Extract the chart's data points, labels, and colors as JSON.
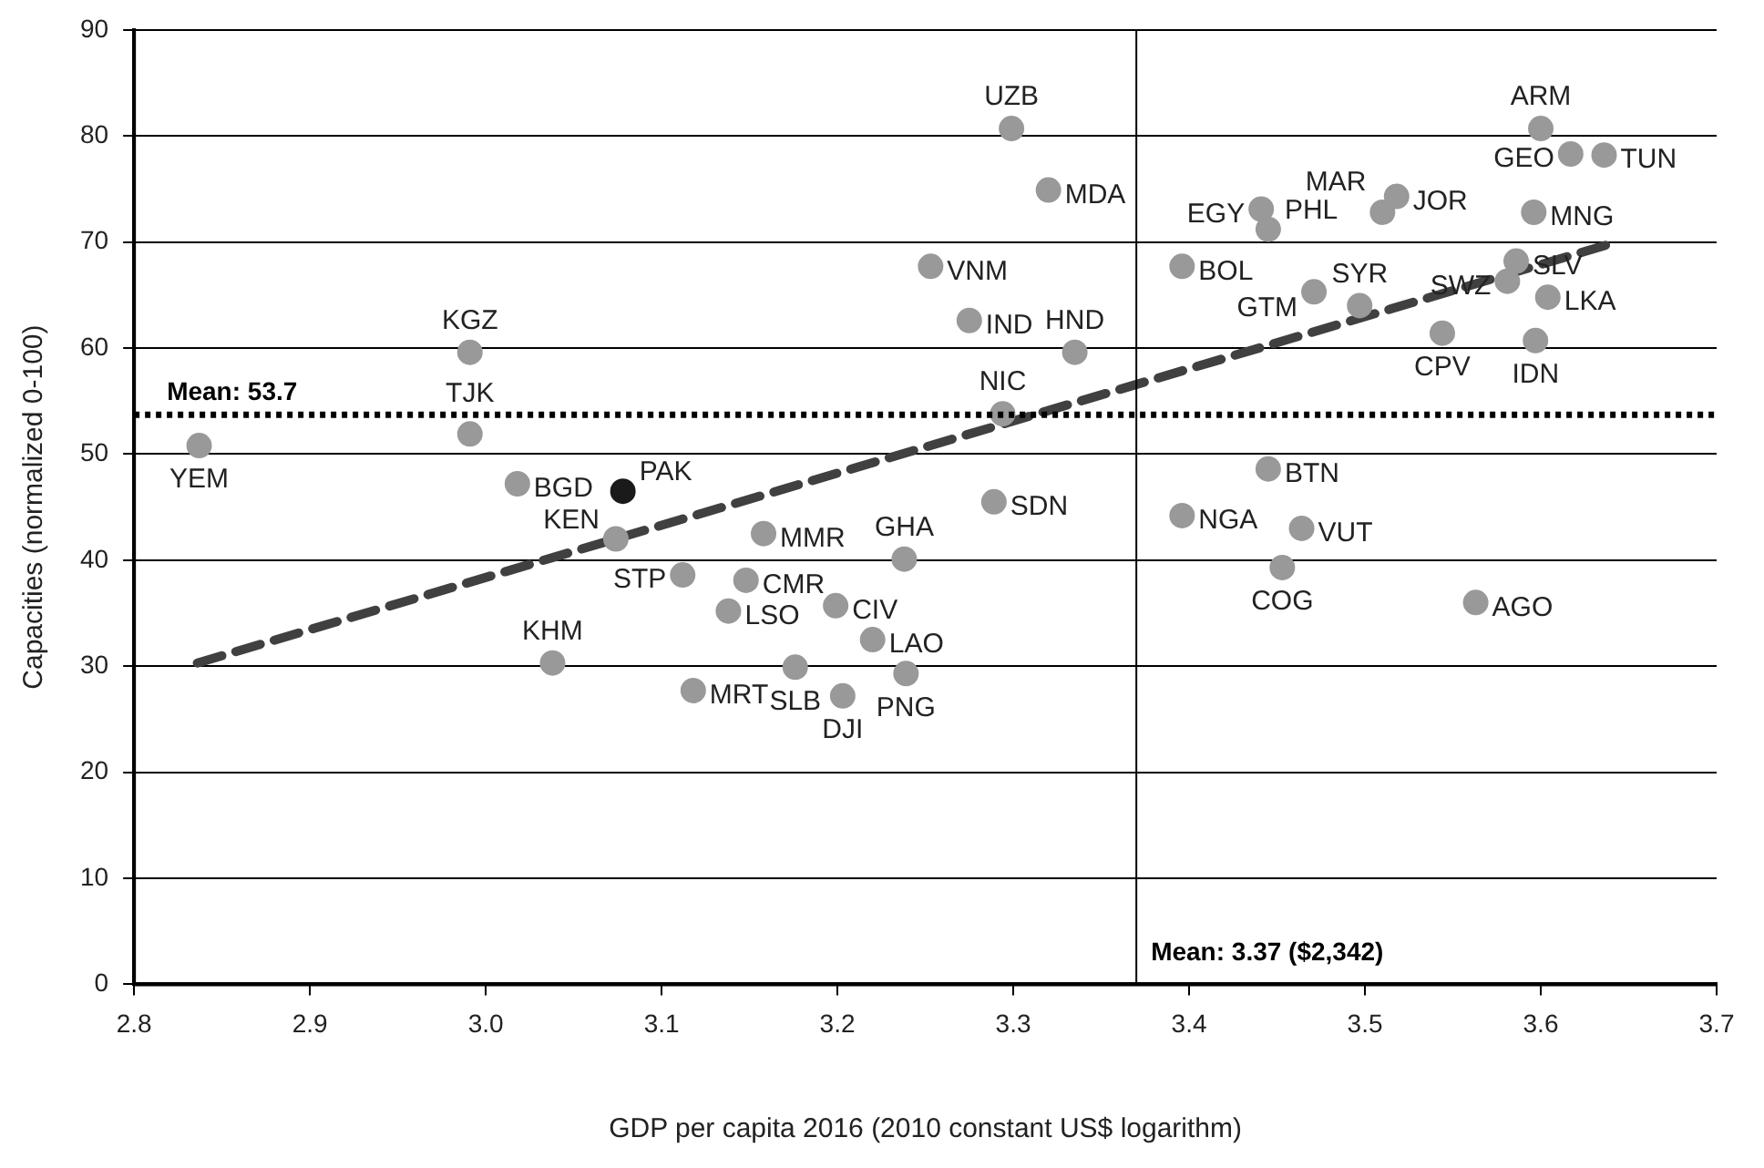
{
  "chart_data": {
    "type": "scatter",
    "xlabel": "GDP per capita 2016 (2010 constant US$ logarithm)",
    "ylabel": "Capacities (normalized 0-100)",
    "xlim": [
      2.8,
      3.7
    ],
    "xticks": [
      2.8,
      2.9,
      {
        "value": 3,
        "label": "3.0"
      },
      3.1,
      3.2,
      3.3,
      3.4,
      3.5,
      3.6,
      3.7
    ],
    "ylim": [
      0,
      90
    ],
    "yticks": [
      0,
      10,
      20,
      30,
      40,
      50,
      60,
      70,
      80,
      90
    ],
    "grid": "y",
    "legend": false,
    "series": [
      {
        "type": "scatter",
        "marker": "circle",
        "x": [
          2.837,
          2.991,
          2.991,
          3.018,
          3.078,
          3.074,
          3.038,
          3.112,
          3.148,
          3.158,
          3.138,
          3.199,
          3.22,
          3.176,
          3.118,
          3.203,
          3.239,
          3.238,
          3.289,
          3.294,
          3.335,
          3.275,
          3.253,
          3.32,
          3.299,
          3.396,
          3.441,
          3.445,
          3.471,
          3.497,
          3.518,
          3.51,
          3.544,
          3.6,
          3.617,
          3.636,
          3.596,
          3.586,
          3.581,
          3.604,
          3.597,
          3.445,
          3.396,
          3.464,
          3.453,
          3.563
        ],
        "values": [
          50.8,
          51.9,
          59.6,
          47.2,
          46.5,
          42.0,
          30.3,
          38.6,
          38.1,
          42.5,
          35.2,
          35.7,
          32.5,
          29.9,
          27.7,
          27.2,
          29.3,
          40.1,
          45.5,
          53.8,
          59.6,
          62.6,
          67.7,
          74.9,
          80.7,
          67.7,
          73.1,
          71.2,
          65.3,
          64.0,
          74.3,
          72.8,
          61.4,
          80.7,
          78.3,
          78.2,
          72.8,
          68.2,
          66.3,
          64.8,
          60.7,
          48.6,
          44.2,
          43.0,
          39.3,
          36.0
        ],
        "colors": [
          "#999999",
          "#999999",
          "#999999",
          "#999999",
          "#1a1a1a",
          "#999999",
          "#999999",
          "#999999",
          "#999999",
          "#999999",
          "#999999",
          "#999999",
          "#999999",
          "#999999",
          "#999999",
          "#999999",
          "#999999",
          "#999999",
          "#999999",
          "#999999",
          "#999999",
          "#999999",
          "#999999",
          "#999999",
          "#999999",
          "#999999",
          "#999999",
          "#999999",
          "#999999",
          "#999999",
          "#999999",
          "#999999",
          "#999999",
          "#999999",
          "#999999",
          "#999999",
          "#999999",
          "#999999",
          "#999999",
          "#999999",
          "#999999",
          "#999999",
          "#999999",
          "#999999",
          "#999999",
          "#999999"
        ]
      },
      {
        "type": "line",
        "x": [
          2.836,
          3.637
        ],
        "values": [
          30.3,
          69.7
        ],
        "color": "#404040",
        "line_style": "dashed"
      }
    ],
    "ref_lines": [
      {
        "axis": "y",
        "value": 53.7,
        "label": "Mean: 53.7",
        "line_style": "dotted",
        "color": "#000000"
      },
      {
        "axis": "x",
        "value": 3.37,
        "label": "Mean: 3.37 ($2,342)",
        "line_style": "solid",
        "color": "#000000"
      }
    ],
    "annotations": [
      {
        "text": "UZB",
        "x": 3.299,
        "y": 80.7
      },
      {
        "text": "MDA",
        "x": 3.32,
        "y": 74.9
      },
      {
        "text": "VNM",
        "x": 3.253,
        "y": 67.7
      },
      {
        "text": "IND",
        "x": 3.275,
        "y": 62.6
      },
      {
        "text": "KGZ",
        "x": 2.991,
        "y": 59.6
      },
      {
        "text": "HND",
        "x": 3.335,
        "y": 59.6
      },
      {
        "text": "YEM",
        "x": 2.837,
        "y": 50.8
      },
      {
        "text": "TJK",
        "x": 2.991,
        "y": 51.9
      },
      {
        "text": "NIC",
        "x": 3.294,
        "y": 53.8
      },
      {
        "text": "BGD",
        "x": 3.018,
        "y": 47.2
      },
      {
        "text": "PAK",
        "x": 3.078,
        "y": 46.5
      },
      {
        "text": "KEN",
        "x": 3.074,
        "y": 42.0
      },
      {
        "text": "MMR",
        "x": 3.158,
        "y": 42.5
      },
      {
        "text": "SDN",
        "x": 3.289,
        "y": 45.5
      },
      {
        "text": "GHA",
        "x": 3.238,
        "y": 40.1
      },
      {
        "text": "CMR",
        "x": 3.148,
        "y": 38.1
      },
      {
        "text": "STP",
        "x": 3.112,
        "y": 38.6
      },
      {
        "text": "LSO",
        "x": 3.138,
        "y": 35.2
      },
      {
        "text": "CIV",
        "x": 3.199,
        "y": 35.7
      },
      {
        "text": "LAO",
        "x": 3.22,
        "y": 32.5
      },
      {
        "text": "SLB",
        "x": 3.176,
        "y": 29.9
      },
      {
        "text": "PNG",
        "x": 3.239,
        "y": 29.3
      },
      {
        "text": "MRT",
        "x": 3.118,
        "y": 27.7
      },
      {
        "text": "KHM",
        "x": 3.038,
        "y": 30.3
      },
      {
        "text": "DJI",
        "x": 3.203,
        "y": 27.2
      },
      {
        "text": "BOL",
        "x": 3.396,
        "y": 67.7
      },
      {
        "text": "EGY",
        "x": 3.441,
        "y": 73.1
      },
      {
        "text": "PHL",
        "x": 3.445,
        "y": 71.2
      },
      {
        "text": "JOR",
        "x": 3.518,
        "y": 74.3
      },
      {
        "text": "MAR",
        "x": 3.51,
        "y": 72.8
      },
      {
        "text": "SYR",
        "x": 3.497,
        "y": 64.0
      },
      {
        "text": "GTM",
        "x": 3.471,
        "y": 65.3
      },
      {
        "text": "CPV",
        "x": 3.544,
        "y": 61.4
      },
      {
        "text": "ARM",
        "x": 3.6,
        "y": 80.7
      },
      {
        "text": "GEO",
        "x": 3.617,
        "y": 78.3
      },
      {
        "text": "TUN",
        "x": 3.636,
        "y": 78.2
      },
      {
        "text": "MNG",
        "x": 3.596,
        "y": 72.8
      },
      {
        "text": "SLV",
        "x": 3.586,
        "y": 68.2
      },
      {
        "text": "LKA",
        "x": 3.604,
        "y": 64.8
      },
      {
        "text": "IDN",
        "x": 3.597,
        "y": 60.7
      },
      {
        "text": "SWZ",
        "x": 3.581,
        "y": 66.3
      },
      {
        "text": "BTN",
        "x": 3.445,
        "y": 48.6
      },
      {
        "text": "NGA",
        "x": 3.396,
        "y": 44.2
      },
      {
        "text": "VUT",
        "x": 3.464,
        "y": 43.0
      },
      {
        "text": "COG",
        "x": 3.453,
        "y": 39.3
      },
      {
        "text": "AGO",
        "x": 3.563,
        "y": 36.0
      }
    ]
  }
}
